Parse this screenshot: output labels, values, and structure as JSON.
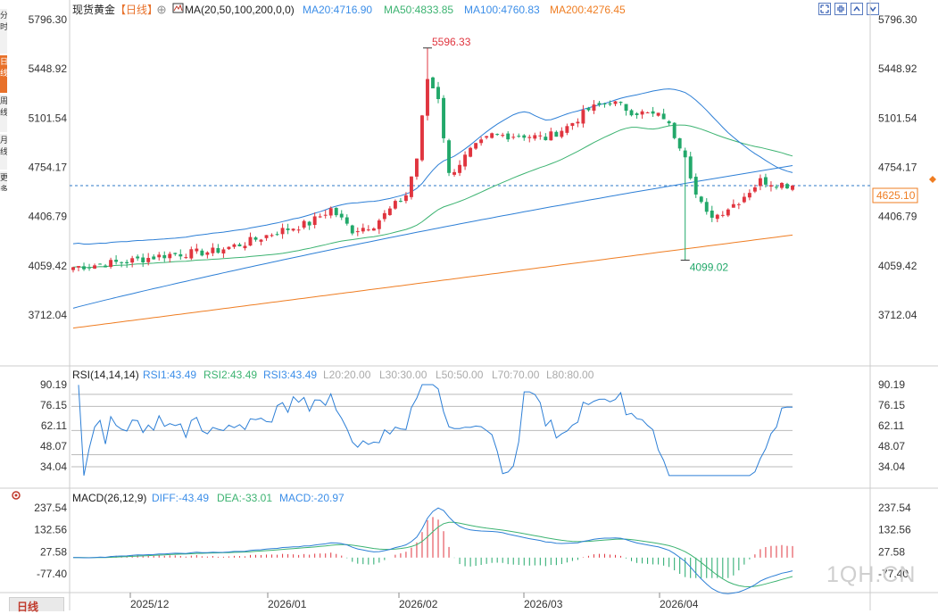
{
  "header": {
    "instrument": "现货黄金",
    "period": "【日线】",
    "period_icon": "circle-plus-icon",
    "ma_label": "MA(20,50,100,200,0,0)",
    "ma_values": [
      {
        "text": "MA20:4716.90",
        "color": "#3c8ee8"
      },
      {
        "text": "MA50:4833.85",
        "color": "#3cb371"
      },
      {
        "text": "MA100:4760.83",
        "color": "#3c8ee8"
      },
      {
        "text": "MA200:4276.45",
        "color": "#ef7d22"
      }
    ]
  },
  "toolbar_icons": [
    "expand-icon",
    "collapse-icon",
    "chevron-up-icon",
    "chevron-down-icon"
  ],
  "side_tabs": [
    "分时",
    "日线",
    "周线",
    "月线",
    "更多"
  ],
  "bottom_tab": "日线",
  "watermark": "1QH.CN",
  "colors": {
    "up": "#e0353f",
    "down": "#22a86a",
    "grid": "#d9d9d9",
    "dashed": "#2d79c7",
    "ma20": "#2d7fd6",
    "ma50": "#3cb371",
    "ma100": "#2d7fd6",
    "ma200": "#ef7d22"
  },
  "chart_data": [
    {
      "type": "candlestick",
      "title": "现货黄金【日线】",
      "yticks": [
        5796.3,
        5448.92,
        5101.54,
        4754.17,
        4406.79,
        4059.42,
        3712.04
      ],
      "ylim": [
        3712.04,
        5796.3
      ],
      "xticks": [
        "2025/12",
        "2026/01",
        "2026/02",
        "2026/03",
        "2026/04"
      ],
      "last_price": "4625.10",
      "annotations": [
        {
          "text": "5596.33",
          "kind": "high",
          "bar": 66
        },
        {
          "text": "4099.02",
          "kind": "low",
          "bar": 114
        }
      ],
      "ma_series": [
        {
          "name": "MA20",
          "last": 4716.9
        },
        {
          "name": "MA50",
          "last": 4833.85
        },
        {
          "name": "MA100",
          "last": 4760.83
        },
        {
          "name": "MA200",
          "last": 4276.45
        }
      ]
    },
    {
      "type": "line",
      "title": "RSI(14,14,14)",
      "legend": [
        {
          "text": "RSI1:43.49",
          "color": "#3c8ee8"
        },
        {
          "text": "RSI2:43.49",
          "color": "#3cb371"
        },
        {
          "text": "RSI3:43.49",
          "color": "#3c8ee8"
        },
        {
          "text": "L20:20.00",
          "color": "#aaaaaa"
        },
        {
          "text": "L30:30.00",
          "color": "#aaaaaa"
        },
        {
          "text": "L50:50.00",
          "color": "#aaaaaa"
        },
        {
          "text": "L70:70.00",
          "color": "#aaaaaa"
        },
        {
          "text": "L80:80.00",
          "color": "#aaaaaa"
        }
      ],
      "yticks": [
        90.19,
        76.15,
        62.11,
        48.07,
        34.04
      ],
      "ylim": [
        34.04,
        90.19
      ]
    },
    {
      "type": "bar",
      "title": "MACD(26,12,9)",
      "legend": [
        {
          "text": "DIFF:-43.49",
          "color": "#3c8ee8"
        },
        {
          "text": "DEA:-33.01",
          "color": "#3cb371"
        },
        {
          "text": "MACD:-20.97",
          "color": "#3c8ee8"
        }
      ],
      "yticks": [
        237.54,
        132.56,
        27.58,
        -77.4
      ],
      "ylim": [
        -77.4,
        237.54
      ]
    }
  ]
}
